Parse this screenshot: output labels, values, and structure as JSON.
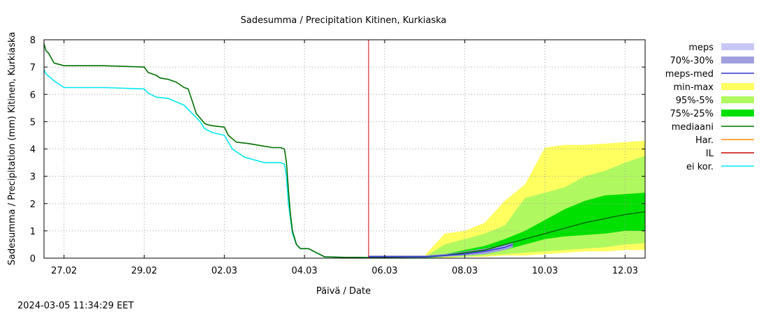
{
  "colors": {
    "meps": "#c8c8f8",
    "band_70_30": "#a0a0e0",
    "meps_med": "#3030d0",
    "min_max": "#ffff60",
    "band_95_5": "#b0f860",
    "band_75_25": "#00e000",
    "mediaani": "#007000",
    "har": "#ff8c00",
    "il": "#cc0000",
    "ei_kor": "#00e8f0"
  },
  "chart_data": {
    "type": "area",
    "title": "Sadesumma / Precipitation  Kitinen, Kurkiaska",
    "xlabel": "Päivä / Date",
    "ylabel": "Sadesumma / Precipitation (mm)  Kitinen, Kurkiaska",
    "timestamp": "2024-03-05 11:34:29 EET",
    "x_unit": "days since 2024-02-26 00:00",
    "xlim": [
      0.5,
      15.5
    ],
    "ylim": [
      0,
      8
    ],
    "x_ticks": [
      {
        "x": 1,
        "label": "27.02"
      },
      {
        "x": 3,
        "label": "29.02"
      },
      {
        "x": 5,
        "label": "02.03"
      },
      {
        "x": 7,
        "label": "04.03"
      },
      {
        "x": 9,
        "label": "06.03"
      },
      {
        "x": 11,
        "label": "08.03"
      },
      {
        "x": 13,
        "label": "10.03"
      },
      {
        "x": 15,
        "label": "12.03"
      }
    ],
    "y_ticks": [
      0,
      1,
      2,
      3,
      4,
      5,
      6,
      7,
      8
    ],
    "legend": [
      "meps",
      "70%-30%",
      "meps-med",
      "min-max",
      "95%-5%",
      "75%-25%",
      "mediaani",
      "Har.",
      "IL",
      "ei kor."
    ],
    "vertical_line_x": 8.6,
    "series": [
      {
        "name": "mediaani",
        "x": [
          0.5,
          0.55,
          0.62,
          0.75,
          1.0,
          2.0,
          3.0,
          3.1,
          3.3,
          3.4,
          3.6,
          3.8,
          4.0,
          4.1,
          4.3,
          4.5,
          4.55,
          4.7,
          5.0,
          5.1,
          5.3,
          5.6,
          6.0,
          6.2,
          6.4,
          6.5,
          6.55,
          6.6,
          6.65,
          6.7,
          6.8,
          6.9,
          7.1,
          7.3,
          7.5,
          8.0,
          8.3,
          8.6,
          9.0,
          10.0,
          10.5,
          11.0,
          11.5,
          12.0,
          12.5,
          13.0,
          13.5,
          14.0,
          14.5,
          15.0,
          15.5
        ],
        "values": [
          7.85,
          7.6,
          7.5,
          7.15,
          7.05,
          7.05,
          7.0,
          6.8,
          6.7,
          6.6,
          6.55,
          6.45,
          6.25,
          6.2,
          5.3,
          4.95,
          4.9,
          4.85,
          4.8,
          4.5,
          4.25,
          4.2,
          4.1,
          4.05,
          4.05,
          4.0,
          3.5,
          2.5,
          1.6,
          1.0,
          0.5,
          0.35,
          0.35,
          0.2,
          0.05,
          0.03,
          0.03,
          0.02,
          0.03,
          0.05,
          0.1,
          0.2,
          0.3,
          0.5,
          0.7,
          0.9,
          1.1,
          1.3,
          1.45,
          1.6,
          1.7
        ]
      },
      {
        "name": "ei kor.",
        "x": [
          0.5,
          0.55,
          0.75,
          1.0,
          2.0,
          3.0,
          3.1,
          3.3,
          3.6,
          4.0,
          4.4,
          4.5,
          4.7,
          5.0,
          5.2,
          5.5,
          6.0,
          6.4,
          6.5,
          6.55,
          6.6,
          6.7,
          6.8,
          6.9,
          7.1,
          7.3,
          7.5,
          8.0,
          8.3,
          8.6
        ],
        "values": [
          6.9,
          6.75,
          6.5,
          6.25,
          6.25,
          6.2,
          6.05,
          5.9,
          5.85,
          5.6,
          5.0,
          4.75,
          4.6,
          4.5,
          4.0,
          3.7,
          3.5,
          3.5,
          3.45,
          3.0,
          2.0,
          0.9,
          0.5,
          0.35,
          0.35,
          0.2,
          0.05,
          0.03,
          0.03,
          0.02
        ]
      },
      {
        "name": "meps-med",
        "x": [
          8.6,
          9.5,
          10.0,
          10.5,
          11.0,
          11.5,
          12.0,
          12.2
        ],
        "values": [
          0.05,
          0.05,
          0.05,
          0.1,
          0.15,
          0.25,
          0.4,
          0.5
        ]
      },
      {
        "name": "min-max",
        "x": [
          8.6,
          10.0,
          10.5,
          11.0,
          11.5,
          12.0,
          12.5,
          13.0,
          13.5,
          14.0,
          14.5,
          15.0,
          15.5
        ],
        "lower": [
          0.0,
          0.0,
          0.0,
          0.05,
          0.05,
          0.1,
          0.1,
          0.15,
          0.2,
          0.25,
          0.25,
          0.3,
          0.3
        ],
        "upper": [
          0.1,
          0.1,
          0.9,
          1.0,
          1.3,
          2.1,
          2.7,
          4.05,
          4.15,
          4.15,
          4.2,
          4.25,
          4.3
        ]
      },
      {
        "name": "95%-5%",
        "x": [
          8.6,
          10.0,
          10.5,
          11.0,
          11.5,
          12.0,
          12.5,
          13.0,
          13.5,
          14.0,
          14.5,
          15.0,
          15.5
        ],
        "lower": [
          0.0,
          0.0,
          0.05,
          0.05,
          0.1,
          0.15,
          0.2,
          0.25,
          0.3,
          0.35,
          0.4,
          0.5,
          0.55
        ],
        "upper": [
          0.05,
          0.05,
          0.5,
          0.7,
          0.9,
          1.2,
          2.2,
          2.4,
          2.6,
          3.0,
          3.2,
          3.5,
          3.75
        ]
      },
      {
        "name": "75%-25%",
        "x": [
          8.6,
          10.0,
          10.5,
          11.0,
          11.5,
          12.0,
          12.5,
          13.0,
          13.5,
          14.0,
          14.5,
          15.0,
          15.5
        ],
        "lower": [
          0.0,
          0.0,
          0.05,
          0.1,
          0.15,
          0.3,
          0.5,
          0.7,
          0.8,
          0.85,
          0.9,
          1.0,
          1.0
        ],
        "upper": [
          0.05,
          0.05,
          0.15,
          0.3,
          0.45,
          0.7,
          1.0,
          1.4,
          1.8,
          2.1,
          2.3,
          2.35,
          2.4
        ]
      },
      {
        "name": "70%-30%",
        "x": [
          8.6,
          10.0,
          10.5,
          11.0,
          11.5,
          12.0,
          12.2
        ],
        "lower": [
          0.02,
          0.02,
          0.05,
          0.1,
          0.15,
          0.3,
          0.4
        ],
        "upper": [
          0.1,
          0.1,
          0.15,
          0.25,
          0.35,
          0.5,
          0.6
        ]
      }
    ]
  }
}
